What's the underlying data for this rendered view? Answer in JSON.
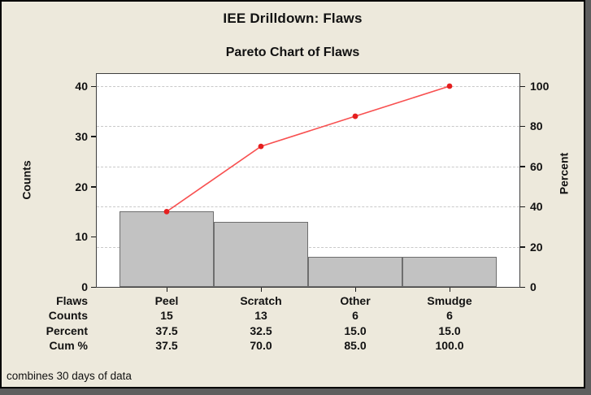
{
  "window": {
    "title": "IEE Drilldown: Flaws",
    "subtitle": "Pareto Chart of Flaws",
    "footnote": "combines 30 days of data"
  },
  "chart_data": {
    "type": "bar",
    "subtype": "pareto",
    "title": "Pareto Chart of Flaws",
    "categories": [
      "Peel",
      "Scratch",
      "Other",
      "Smudge"
    ],
    "series": [
      {
        "name": "Counts",
        "type": "bar",
        "values": [
          15,
          13,
          6,
          6
        ]
      },
      {
        "name": "Cum %",
        "type": "line",
        "values": [
          37.5,
          70.0,
          85.0,
          100.0
        ]
      }
    ],
    "left_axis": {
      "label": "Counts",
      "range": [
        0,
        40
      ],
      "ticks": [
        0,
        10,
        20,
        30,
        40
      ]
    },
    "right_axis": {
      "label": "Percent",
      "range": [
        0,
        100
      ],
      "ticks": [
        0,
        20,
        40,
        60,
        80,
        100
      ]
    },
    "grid": {
      "horizontal_at_percent": [
        20,
        40,
        60,
        80,
        100
      ],
      "style": "dashed"
    },
    "legend": "none",
    "colors": {
      "background": "#EDE9DC",
      "plot_background": "#ffffff",
      "bar_fill": "#c2c2c2",
      "bar_border": "#6e6e6e",
      "cum_line": "#f85050",
      "cum_marker": "#e51f1f"
    }
  },
  "table": {
    "rows": [
      {
        "label": "Flaws",
        "values": [
          "Peel",
          "Scratch",
          "Other",
          "Smudge"
        ]
      },
      {
        "label": "Counts",
        "values": [
          "15",
          "13",
          "6",
          "6"
        ]
      },
      {
        "label": "Percent",
        "values": [
          "37.5",
          "32.5",
          "15.0",
          "15.0"
        ]
      },
      {
        "label": "Cum %",
        "values": [
          "37.5",
          "70.0",
          "85.0",
          "100.0"
        ]
      }
    ]
  }
}
